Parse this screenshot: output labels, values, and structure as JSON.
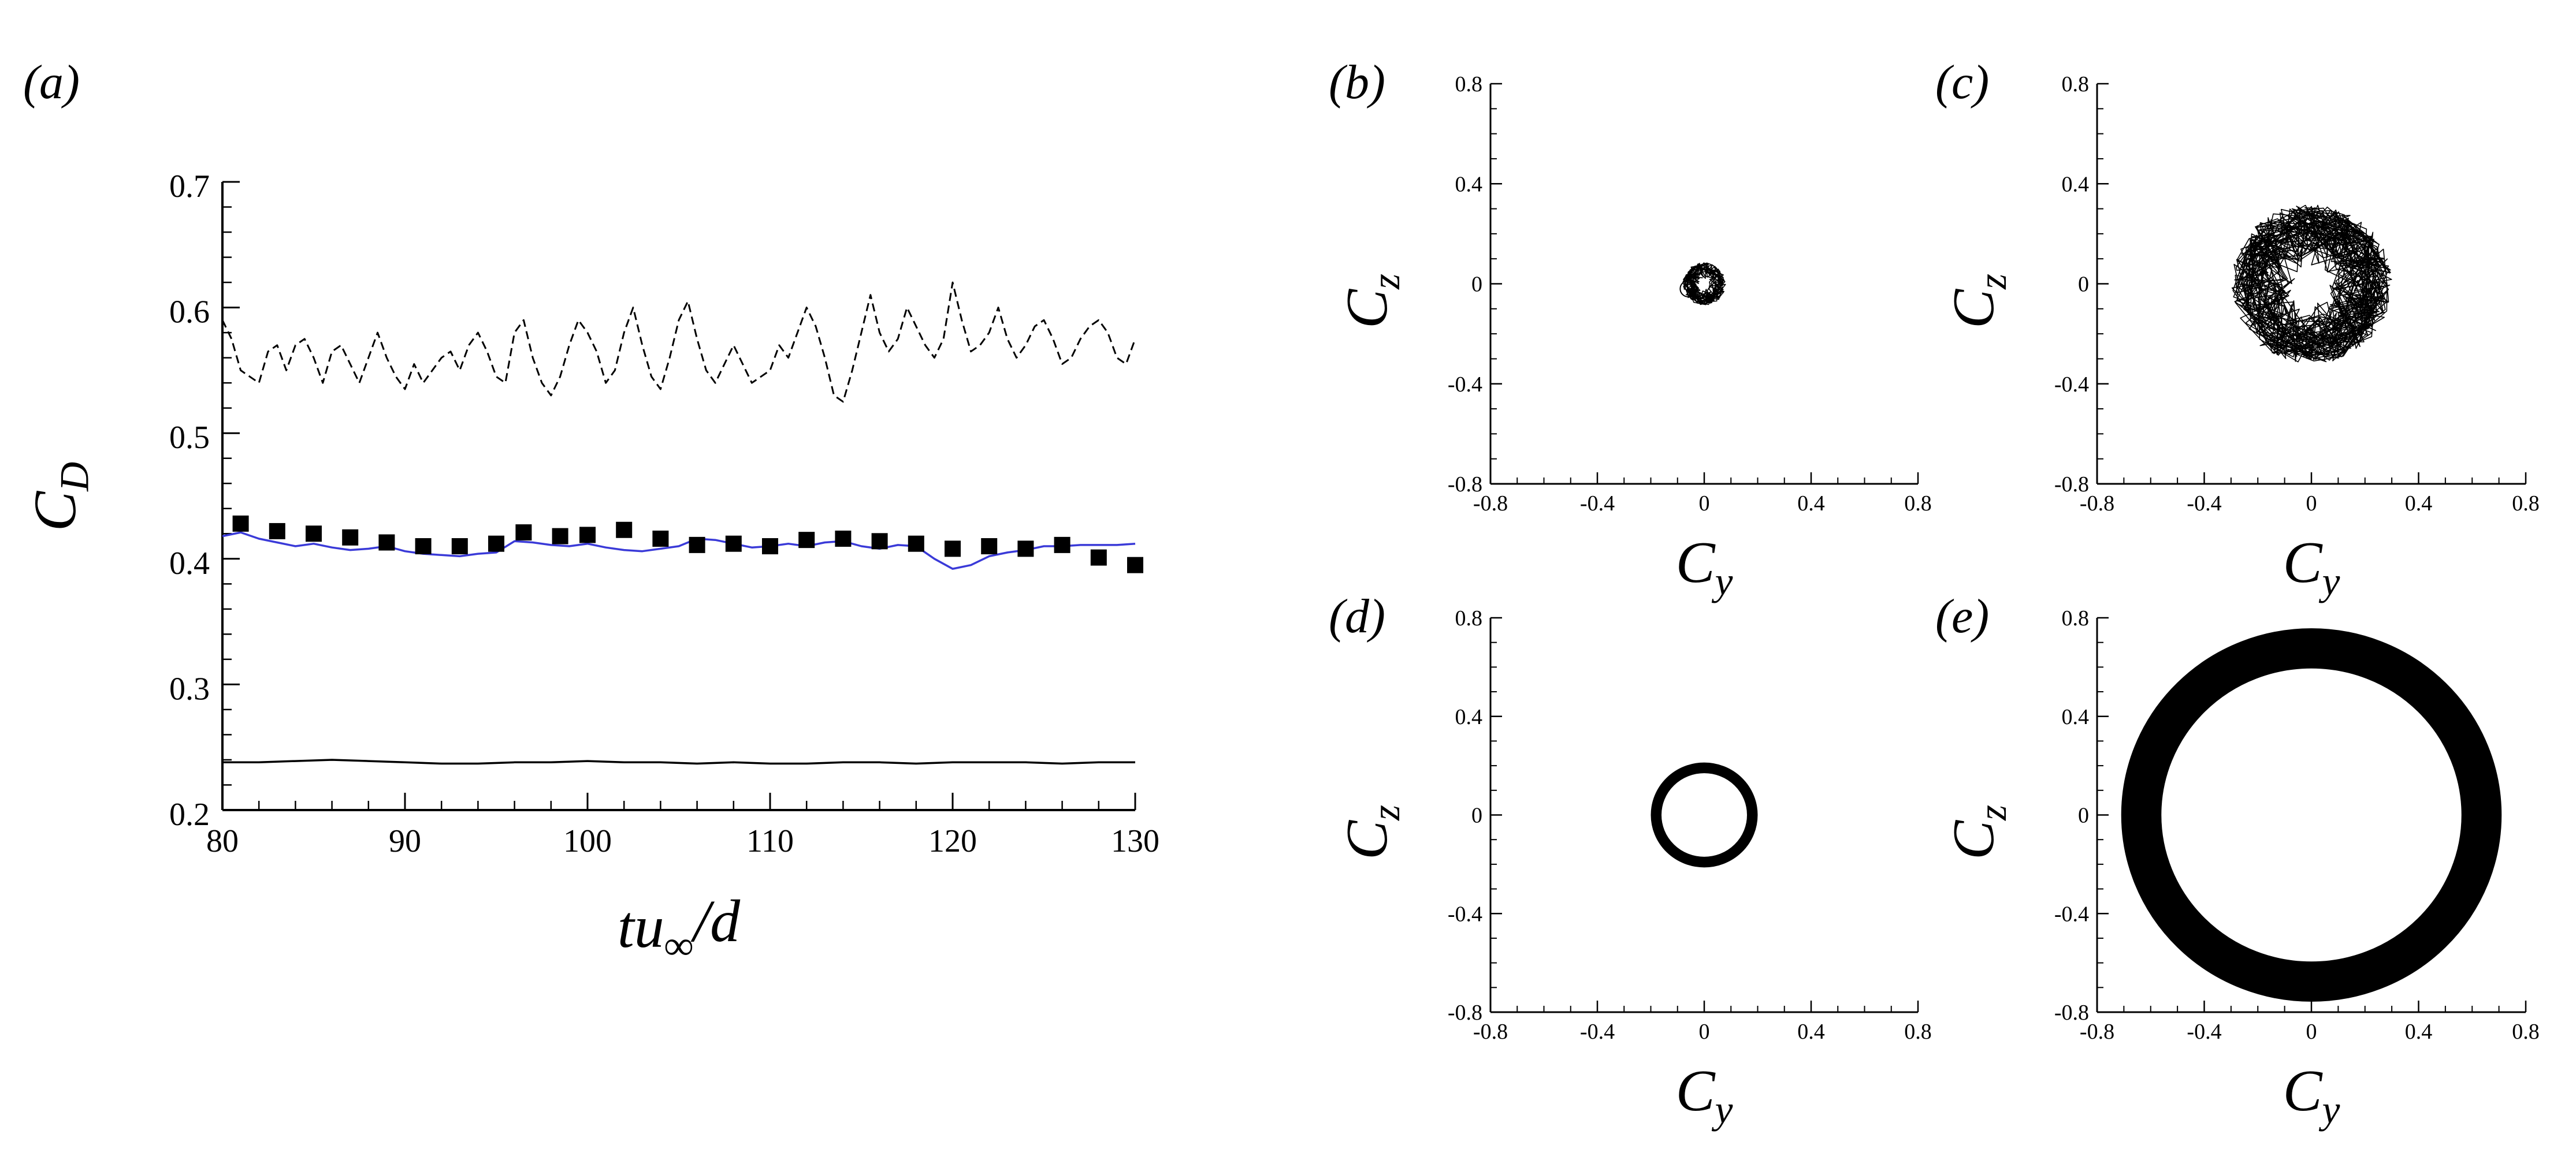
{
  "chart_data": [
    {
      "panel": "(a)",
      "type": "line",
      "xlabel": "tu∞/d",
      "ylabel": "C_D",
      "xlim": [
        80,
        130
      ],
      "ylim": [
        0.2,
        0.7
      ],
      "xticks": [
        80,
        90,
        100,
        110,
        120,
        130
      ],
      "yticks": [
        0.2,
        0.3,
        0.4,
        0.5,
        0.6,
        0.7
      ],
      "xtick_labels": [
        "80",
        "90",
        "100",
        "110",
        "120",
        "130"
      ],
      "ytick_labels": [
        "0.2",
        "0.3",
        "0.4",
        "0.5",
        "0.6",
        "0.7"
      ],
      "grid": false,
      "colors": {
        "blue_line": "#3a3ad8",
        "black": "#000000"
      },
      "series": [
        {
          "style": "dashed-black",
          "x": [
            80,
            80.5,
            81,
            81.5,
            82,
            82.5,
            83,
            83.5,
            84,
            84.5,
            85,
            85.5,
            86,
            86.5,
            87,
            87.5,
            88,
            88.5,
            89,
            89.5,
            90,
            90.5,
            91,
            91.5,
            92,
            92.5,
            93,
            93.5,
            94,
            94.5,
            95,
            95.5,
            96,
            96.5,
            97,
            97.5,
            98,
            98.5,
            99,
            99.5,
            100,
            100.5,
            101,
            101.5,
            102,
            102.5,
            103,
            103.5,
            104,
            104.5,
            105,
            105.5,
            106,
            106.5,
            107,
            107.5,
            108,
            108.5,
            109,
            109.5,
            110,
            110.5,
            111,
            111.5,
            112,
            112.5,
            113,
            113.5,
            114,
            114.5,
            115,
            115.5,
            116,
            116.5,
            117,
            117.5,
            118,
            118.5,
            119,
            119.5,
            120,
            120.5,
            121,
            121.5,
            122,
            122.5,
            123,
            123.5,
            124,
            124.5,
            125,
            125.5,
            126,
            126.5,
            127,
            127.5,
            128,
            128.5,
            129,
            129.5,
            130
          ],
          "values": [
            0.59,
            0.575,
            0.55,
            0.545,
            0.54,
            0.565,
            0.57,
            0.55,
            0.57,
            0.575,
            0.56,
            0.54,
            0.565,
            0.57,
            0.555,
            0.54,
            0.56,
            0.58,
            0.56,
            0.545,
            0.535,
            0.555,
            0.54,
            0.55,
            0.56,
            0.565,
            0.55,
            0.57,
            0.58,
            0.565,
            0.545,
            0.54,
            0.58,
            0.59,
            0.56,
            0.54,
            0.53,
            0.545,
            0.57,
            0.59,
            0.58,
            0.565,
            0.54,
            0.55,
            0.58,
            0.6,
            0.57,
            0.545,
            0.535,
            0.56,
            0.59,
            0.605,
            0.575,
            0.55,
            0.54,
            0.555,
            0.57,
            0.555,
            0.54,
            0.545,
            0.55,
            0.57,
            0.56,
            0.58,
            0.6,
            0.585,
            0.56,
            0.53,
            0.525,
            0.55,
            0.58,
            0.61,
            0.58,
            0.565,
            0.575,
            0.6,
            0.585,
            0.57,
            0.56,
            0.575,
            0.62,
            0.59,
            0.565,
            0.57,
            0.58,
            0.6,
            0.575,
            0.56,
            0.57,
            0.585,
            0.59,
            0.575,
            0.555,
            0.56,
            0.575,
            0.585,
            0.59,
            0.58,
            0.56,
            0.555,
            0.575
          ]
        },
        {
          "style": "solid-blue",
          "x": [
            80,
            81,
            82,
            83,
            84,
            85,
            86,
            87,
            88,
            89,
            90,
            91,
            92,
            93,
            94,
            95,
            96,
            97,
            98,
            99,
            100,
            101,
            102,
            103,
            104,
            105,
            106,
            107,
            108,
            109,
            110,
            111,
            112,
            113,
            114,
            115,
            116,
            117,
            118,
            119,
            120,
            121,
            122,
            123,
            124,
            125,
            126,
            127,
            128,
            129,
            130
          ],
          "values": [
            0.418,
            0.421,
            0.416,
            0.413,
            0.41,
            0.412,
            0.409,
            0.407,
            0.408,
            0.41,
            0.406,
            0.404,
            0.403,
            0.402,
            0.404,
            0.405,
            0.414,
            0.413,
            0.411,
            0.41,
            0.412,
            0.409,
            0.407,
            0.406,
            0.408,
            0.41,
            0.416,
            0.415,
            0.412,
            0.409,
            0.41,
            0.412,
            0.41,
            0.413,
            0.414,
            0.41,
            0.408,
            0.411,
            0.41,
            0.4,
            0.392,
            0.395,
            0.402,
            0.405,
            0.407,
            0.41,
            0.41,
            0.411,
            0.411,
            0.411,
            0.412
          ]
        },
        {
          "style": "squares-black",
          "x": [
            81,
            83,
            85,
            87,
            89,
            91,
            93,
            95,
            96.5,
            98.5,
            100,
            102,
            104,
            106,
            108,
            110,
            112,
            114,
            116,
            118,
            120,
            122,
            124,
            126,
            128,
            130
          ],
          "values": [
            0.428,
            0.422,
            0.42,
            0.417,
            0.413,
            0.41,
            0.41,
            0.412,
            0.421,
            0.418,
            0.419,
            0.423,
            0.416,
            0.411,
            0.412,
            0.41,
            0.415,
            0.416,
            0.414,
            0.412,
            0.408,
            0.41,
            0.408,
            0.411,
            0.401,
            0.395
          ]
        },
        {
          "style": "solid-black",
          "x": [
            80,
            82,
            84,
            86,
            88,
            90,
            92,
            94,
            96,
            98,
            100,
            102,
            104,
            106,
            108,
            110,
            112,
            114,
            116,
            118,
            120,
            122,
            124,
            126,
            128,
            130
          ],
          "values": [
            0.238,
            0.238,
            0.239,
            0.24,
            0.239,
            0.238,
            0.237,
            0.237,
            0.238,
            0.238,
            0.239,
            0.238,
            0.238,
            0.237,
            0.238,
            0.237,
            0.237,
            0.238,
            0.238,
            0.237,
            0.238,
            0.238,
            0.238,
            0.237,
            0.238,
            0.238
          ]
        }
      ]
    },
    {
      "panel": "(b)",
      "type": "scatter",
      "xlabel": "C_y",
      "ylabel": "C_z",
      "xlim": [
        -0.8,
        0.8
      ],
      "ylim": [
        -0.8,
        0.8
      ],
      "xtick_labels": [
        "-0.8",
        "-0.4",
        "0",
        "0.4",
        "0.8"
      ],
      "ytick_labels": [
        "-0.8",
        "-0.4",
        "0",
        "0.4",
        "0.8"
      ],
      "trajectory": {
        "shape": "scribble",
        "center": [
          0.0,
          0.0
        ],
        "radius": 0.08,
        "small_loop_center": [
          -0.06,
          -0.02
        ],
        "small_loop_radius": 0.03
      }
    },
    {
      "panel": "(c)",
      "type": "scatter",
      "xlabel": "C_y",
      "ylabel": "C_z",
      "xlim": [
        -0.8,
        0.8
      ],
      "ylim": [
        -0.8,
        0.8
      ],
      "xtick_labels": [
        "-0.8",
        "-0.4",
        "0",
        "0.4",
        "0.8"
      ],
      "ytick_labels": [
        "-0.8",
        "-0.4",
        "0",
        "0.4",
        "0.8"
      ],
      "trajectory": {
        "shape": "scribble",
        "center": [
          0.0,
          0.0
        ],
        "radius": 0.3
      }
    },
    {
      "panel": "(d)",
      "type": "scatter",
      "xlabel": "C_y",
      "ylabel": "C_z",
      "xlim": [
        -0.8,
        0.8
      ],
      "ylim": [
        -0.8,
        0.8
      ],
      "xtick_labels": [
        "-0.8",
        "-0.4",
        "0",
        "0.4",
        "0.8"
      ],
      "ytick_labels": [
        "-0.8",
        "-0.4",
        "0",
        "0.4",
        "0.8"
      ],
      "trajectory": {
        "shape": "ring",
        "center": [
          0.0,
          0.0
        ],
        "inner_radius": 0.16,
        "outer_radius": 0.2
      }
    },
    {
      "panel": "(e)",
      "type": "scatter",
      "xlabel": "C_y",
      "ylabel": "C_z",
      "xlim": [
        -0.8,
        0.8
      ],
      "ylim": [
        -0.8,
        0.8
      ],
      "xtick_labels": [
        "-0.8",
        "-0.4",
        "0",
        "0.4",
        "0.8"
      ],
      "ytick_labels": [
        "-0.8",
        "-0.4",
        "0",
        "0.4",
        "0.8"
      ],
      "trajectory": {
        "shape": "ring",
        "center": [
          0.0,
          0.0
        ],
        "inner_radius": 0.56,
        "outer_radius": 0.71
      }
    }
  ]
}
